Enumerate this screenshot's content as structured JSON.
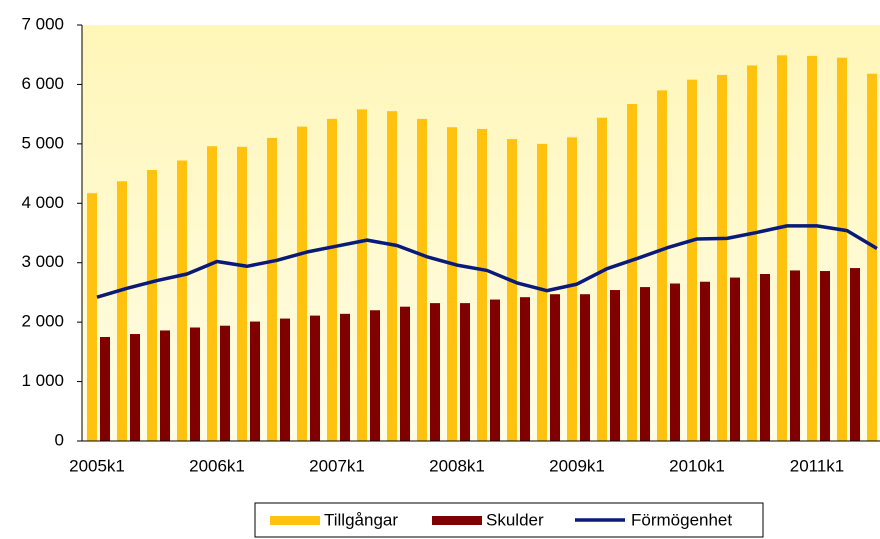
{
  "chart_data": {
    "type": "bar_line",
    "categories": [
      "2005k1",
      null,
      null,
      null,
      "2006k1",
      null,
      null,
      null,
      "2007k1",
      null,
      null,
      null,
      "2008k1",
      null,
      null,
      null,
      "2009k1",
      null,
      null,
      null,
      "2010k1",
      null,
      null,
      null,
      "2011k1",
      null,
      null
    ],
    "series": [
      {
        "name": "Tillgångar",
        "color": "#ffc20e",
        "kind": "bar",
        "values": [
          4170,
          4370,
          4560,
          4720,
          4960,
          4950,
          5100,
          5290,
          5420,
          5580,
          5550,
          5420,
          5280,
          5250,
          5080,
          5000,
          5110,
          5440,
          5670,
          5900,
          6080,
          6160,
          6320,
          6490,
          6480,
          6450,
          6180
        ]
      },
      {
        "name": "Skulder",
        "color": "#800000",
        "kind": "bar",
        "values": [
          1750,
          1800,
          1860,
          1910,
          1940,
          2010,
          2060,
          2110,
          2140,
          2200,
          2260,
          2320,
          2320,
          2380,
          2420,
          2470,
          2470,
          2540,
          2590,
          2650,
          2680,
          2750,
          2810,
          2870,
          2860,
          2910,
          2940
        ]
      },
      {
        "name": "Förmögenhet",
        "color": "#0a1a78",
        "kind": "line",
        "values": [
          2420,
          2570,
          2700,
          2810,
          3020,
          2940,
          3040,
          3180,
          3280,
          3380,
          3290,
          3100,
          2960,
          2870,
          2660,
          2530,
          2640,
          2900,
          3070,
          3250,
          3400,
          3410,
          3510,
          3620,
          3620,
          3540,
          3240
        ]
      }
    ],
    "ylim": [
      0,
      7000
    ],
    "yticks": [
      0,
      {
        "value": 1000,
        "label": "1 000"
      },
      {
        "value": 2000,
        "label": "2 000"
      },
      {
        "value": 3000,
        "label": "3 000"
      },
      {
        "value": 4000,
        "label": "4 000"
      },
      {
        "value": 5000,
        "label": "5 000"
      },
      {
        "value": 6000,
        "label": "6 000"
      },
      {
        "value": 7000,
        "label": "7 000"
      }
    ],
    "legend": "bottom"
  }
}
